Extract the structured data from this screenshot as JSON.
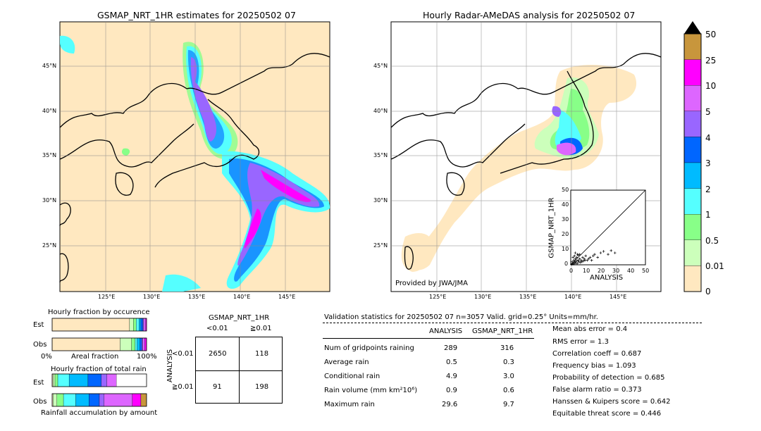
{
  "left_map": {
    "title": "GSMAP_NRT_1HR estimates for 20250502 07",
    "lon_ticks": [
      "125°E",
      "130°E",
      "135°E",
      "140°E",
      "145°E"
    ],
    "lat_ticks": [
      "45°N",
      "40°N",
      "35°N",
      "30°N",
      "25°N"
    ]
  },
  "right_map": {
    "title": "Hourly Radar-AMeDAS analysis for 20250502 07",
    "lon_ticks": [
      "125°E",
      "130°E",
      "135°E",
      "140°E",
      "145°E"
    ],
    "lat_ticks": [
      "45°N",
      "40°N",
      "35°N",
      "30°N",
      "25°N"
    ],
    "credit": "Provided by JWA/JMA"
  },
  "colorbar": {
    "labels": [
      "50",
      "25",
      "10",
      "5",
      "4",
      "3",
      "2",
      "1",
      "0.5",
      "0.01",
      "0"
    ],
    "colors": [
      "#c8963c",
      "#ff00ff",
      "#dd66ff",
      "#9966ff",
      "#0066ff",
      "#00bbff",
      "#55ffff",
      "#88ff88",
      "#ccffbb",
      "#ffe8c0"
    ]
  },
  "chart_data": [
    {
      "type": "scatter",
      "title": "",
      "xlabel": "ANALYSIS",
      "ylabel": "GSMAP_NRT_1HR",
      "xlim": [
        0,
        50
      ],
      "ylim": [
        0,
        50
      ],
      "xticks": [
        "0",
        "10",
        "20",
        "30",
        "40",
        "50"
      ],
      "yticks": [
        "0",
        "10",
        "20",
        "30",
        "40",
        "50"
      ],
      "diagonal": true,
      "points": [
        [
          0.5,
          0.3
        ],
        [
          1,
          0.5
        ],
        [
          1.5,
          1
        ],
        [
          2,
          0.5
        ],
        [
          2.5,
          1.5
        ],
        [
          3,
          2
        ],
        [
          3.5,
          1
        ],
        [
          4,
          2.5
        ],
        [
          4.5,
          1
        ],
        [
          5,
          3
        ],
        [
          5.5,
          2
        ],
        [
          6,
          4
        ],
        [
          6.5,
          1.5
        ],
        [
          7,
          3
        ],
        [
          7.5,
          2
        ],
        [
          8,
          5
        ],
        [
          8.5,
          2.5
        ],
        [
          9,
          4
        ],
        [
          9.5,
          3
        ],
        [
          10,
          6
        ],
        [
          1,
          2
        ],
        [
          2,
          3
        ],
        [
          3,
          4
        ],
        [
          1.5,
          5
        ],
        [
          2.5,
          6
        ],
        [
          4,
          5
        ],
        [
          5,
          6.5
        ],
        [
          6,
          7
        ],
        [
          3,
          8
        ],
        [
          4.5,
          7
        ],
        [
          11,
          3
        ],
        [
          12,
          4
        ],
        [
          13,
          5
        ],
        [
          14,
          3
        ],
        [
          15,
          6
        ],
        [
          16,
          7
        ],
        [
          18,
          5
        ],
        [
          20,
          8
        ],
        [
          22,
          9
        ],
        [
          25,
          7
        ],
        [
          27,
          9.5
        ],
        [
          29.6,
          8
        ]
      ]
    },
    {
      "type": "bar",
      "title": "Hourly fraction by occurence",
      "xlabel": "Areal fraction",
      "xtick_left": "0%",
      "xtick_right": "100%",
      "categories": [
        "Est",
        "Obs"
      ],
      "stacked": true,
      "colors": [
        "#ffe8c0",
        "#ccffbb",
        "#88ff88",
        "#55ffff",
        "#00bbff",
        "#0066ff",
        "#9966ff",
        "#dd66ff",
        "#ff00ff",
        "#c8963c"
      ],
      "series": [
        {
          "values": [
            0.82,
            0.72
          ]
        },
        {
          "values": [
            0.04,
            0.12
          ]
        },
        {
          "values": [
            0.03,
            0.04
          ]
        },
        {
          "values": [
            0.03,
            0.02
          ]
        },
        {
          "values": [
            0.02,
            0.03
          ]
        },
        {
          "values": [
            0.02,
            0.02
          ]
        },
        {
          "values": [
            0.01,
            0.01
          ]
        },
        {
          "values": [
            0.02,
            0.02
          ]
        },
        {
          "values": [
            0.01,
            0.02
          ]
        },
        {
          "values": [
            0.0,
            0.0
          ]
        }
      ]
    },
    {
      "type": "bar",
      "title": "Hourly fraction of total rain",
      "xlabel": "Rainfall accumulation by amount",
      "categories": [
        "Est",
        "Obs"
      ],
      "stacked": true,
      "colors": [
        "#ffe8c0",
        "#ccffbb",
        "#88ff88",
        "#55ffff",
        "#00bbff",
        "#0066ff",
        "#9966ff",
        "#dd66ff",
        "#ff00ff",
        "#c8963c"
      ],
      "series": [
        {
          "values": [
            0.01,
            0.01
          ]
        },
        {
          "values": [
            0.02,
            0.04
          ]
        },
        {
          "values": [
            0.03,
            0.07
          ]
        },
        {
          "values": [
            0.12,
            0.13
          ]
        },
        {
          "values": [
            0.2,
            0.14
          ]
        },
        {
          "values": [
            0.14,
            0.11
          ]
        },
        {
          "values": [
            0.06,
            0.05
          ]
        },
        {
          "values": [
            0.1,
            0.3
          ]
        },
        {
          "values": [
            0.0,
            0.09
          ]
        },
        {
          "values": [
            0.0,
            0.06
          ]
        }
      ]
    },
    {
      "type": "table",
      "title": "GSMAP_NRT_1HR",
      "col_headers": [
        "<0.01",
        "≧0.01"
      ],
      "row_axis_label": "ANALYSIS",
      "row_headers": [
        "<0.01",
        "≧0.01"
      ],
      "cells": [
        [
          "2650",
          "118"
        ],
        [
          "91",
          "198"
        ]
      ]
    }
  ],
  "stats": {
    "header": "Validation statistics for 20250502 07  n=3057 Valid. grid=0.25° Units=mm/hr.",
    "col1": "ANALYSIS",
    "col2": "GSMAP_NRT_1HR",
    "rows": [
      {
        "label": "Num of gridpoints raining",
        "a": "289",
        "b": "316"
      },
      {
        "label": "Average rain",
        "a": "0.5",
        "b": "0.3"
      },
      {
        "label": "Conditional rain",
        "a": "4.9",
        "b": "3.0"
      },
      {
        "label": "Rain volume (mm km²10⁶)",
        "a": "0.9",
        "b": "0.6"
      },
      {
        "label": "Maximum rain",
        "a": "29.6",
        "b": "9.7"
      }
    ],
    "right": [
      "Mean abs error =    0.4",
      "RMS error =    1.3",
      "Correlation coeff =  0.687",
      "Frequency bias =  1.093",
      "Probability of detection =  0.685",
      "False alarm ratio =  0.373",
      "Hanssen & Kuipers score =  0.642",
      "Equitable threat score =  0.446"
    ]
  }
}
